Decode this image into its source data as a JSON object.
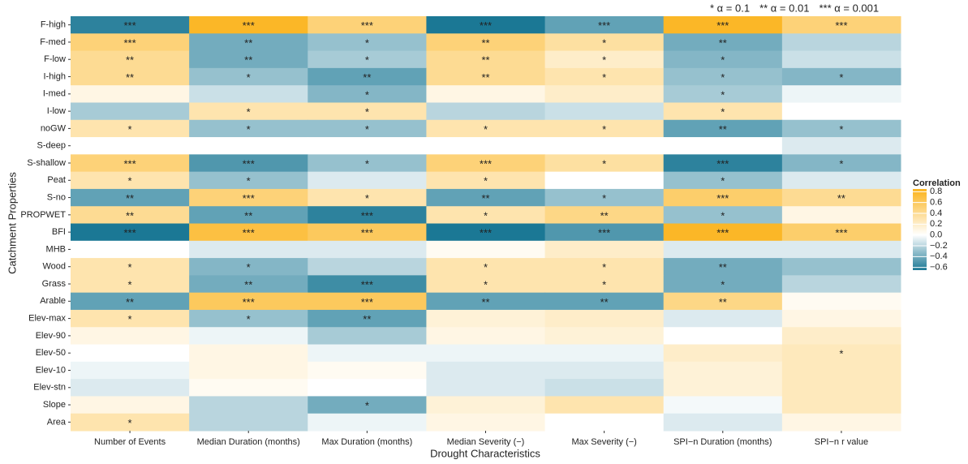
{
  "chart_data": {
    "type": "heatmap",
    "x_label": "Drought Characteristics",
    "y_label": "Catchment Properties",
    "columns": [
      "Number of Events",
      "Median Duration (months)",
      "Max Duration (months)",
      "Median Severity (−)",
      "Max Severity (−)",
      "SPI−n Duration (months)",
      "SPI−n r value"
    ],
    "rows": [
      "F-high",
      "F-med",
      "F-low",
      "I-high",
      "I-med",
      "I-low",
      "noGW",
      "S-deep",
      "S-shallow",
      "Peat",
      "S-no",
      "PROPWET",
      "BFI",
      "MHB",
      "Wood",
      "Grass",
      "Arable",
      "Elev-max",
      "Elev-90",
      "Elev-50",
      "Elev-10",
      "Elev-stn",
      "Slope",
      "Area"
    ],
    "values": [
      [
        -0.6,
        0.8,
        0.5,
        -0.65,
        -0.45,
        0.8,
        0.5
      ],
      [
        0.5,
        -0.4,
        -0.3,
        0.5,
        0.35,
        -0.4,
        -0.2
      ],
      [
        0.4,
        -0.4,
        -0.25,
        0.4,
        0.2,
        -0.35,
        -0.15
      ],
      [
        0.4,
        -0.3,
        -0.45,
        0.4,
        0.3,
        -0.3,
        -0.35
      ],
      [
        0.1,
        -0.15,
        -0.35,
        0.1,
        0.2,
        -0.25,
        -0.05
      ],
      [
        -0.25,
        0.3,
        0.3,
        -0.2,
        -0.15,
        0.3,
        0
      ],
      [
        0.3,
        -0.3,
        -0.3,
        0.3,
        0.3,
        -0.45,
        -0.3
      ],
      [
        0,
        0,
        0,
        0,
        0,
        0,
        -0.1
      ],
      [
        0.5,
        -0.5,
        -0.3,
        0.5,
        0.35,
        -0.6,
        -0.35
      ],
      [
        0.3,
        -0.3,
        -0.1,
        0.3,
        0,
        -0.3,
        -0.1
      ],
      [
        -0.45,
        0.5,
        0.3,
        -0.45,
        -0.3,
        0.55,
        0.4
      ],
      [
        0.4,
        -0.45,
        -0.6,
        0.3,
        0.45,
        -0.3,
        0.1
      ],
      [
        -0.65,
        0.7,
        0.6,
        -0.65,
        -0.5,
        0.8,
        0.55
      ],
      [
        0,
        -0.1,
        -0.1,
        0.05,
        0.2,
        -0.1,
        -0.1
      ],
      [
        0.3,
        -0.35,
        -0.2,
        0.3,
        0.3,
        -0.4,
        -0.3
      ],
      [
        0.3,
        -0.4,
        -0.55,
        0.3,
        0.3,
        -0.4,
        -0.2
      ],
      [
        -0.45,
        0.6,
        0.6,
        -0.45,
        -0.45,
        0.45,
        0.05
      ],
      [
        0.3,
        -0.3,
        -0.45,
        0.15,
        0.2,
        -0.1,
        0.1
      ],
      [
        0.1,
        -0.05,
        -0.25,
        0.1,
        0.15,
        0,
        0.2
      ],
      [
        0,
        0.1,
        -0.05,
        -0.05,
        -0.05,
        0.2,
        0.25
      ],
      [
        -0.05,
        0.1,
        0.05,
        -0.1,
        -0.1,
        0.15,
        0.25
      ],
      [
        -0.1,
        0.05,
        0,
        -0.1,
        -0.15,
        0.15,
        0.25
      ],
      [
        0.1,
        -0.2,
        -0.4,
        0.15,
        0.3,
        -0.03,
        0.25
      ],
      [
        0.3,
        -0.2,
        -0.05,
        0.1,
        0,
        -0.1,
        0.1
      ]
    ],
    "stars": [
      [
        "***",
        "***",
        "***",
        "***",
        "***",
        "***",
        "***"
      ],
      [
        "***",
        "**",
        "*",
        "**",
        "*",
        "**",
        null
      ],
      [
        "**",
        "**",
        "*",
        "**",
        "*",
        "*",
        null
      ],
      [
        "**",
        "*",
        "**",
        "**",
        "*",
        "*",
        "*"
      ],
      [
        null,
        null,
        "*",
        null,
        null,
        "*",
        null
      ],
      [
        null,
        "*",
        "*",
        null,
        null,
        "*",
        null
      ],
      [
        "*",
        "*",
        "*",
        "*",
        "*",
        "**",
        "*"
      ],
      [
        null,
        null,
        null,
        null,
        null,
        null,
        null
      ],
      [
        "***",
        "***",
        "*",
        "***",
        "*",
        "***",
        "*"
      ],
      [
        "*",
        "*",
        null,
        "*",
        null,
        "*",
        null
      ],
      [
        "**",
        "***",
        "*",
        "**",
        "*",
        "***",
        "**"
      ],
      [
        "**",
        "**",
        "***",
        "*",
        "**",
        "*",
        null
      ],
      [
        "***",
        "***",
        "***",
        "***",
        "***",
        "***",
        "***"
      ],
      [
        null,
        null,
        null,
        null,
        null,
        null,
        null
      ],
      [
        "*",
        "*",
        null,
        "*",
        "*",
        "**",
        null
      ],
      [
        "*",
        "**",
        "***",
        "*",
        "*",
        "*",
        null
      ],
      [
        "**",
        "***",
        "***",
        "**",
        "**",
        "**",
        null
      ],
      [
        "*",
        "*",
        "**",
        null,
        null,
        null,
        null
      ],
      [
        null,
        null,
        null,
        null,
        null,
        null,
        null
      ],
      [
        null,
        null,
        null,
        null,
        null,
        null,
        "*"
      ],
      [
        null,
        null,
        null,
        null,
        null,
        null,
        null
      ],
      [
        null,
        null,
        null,
        null,
        null,
        null,
        null
      ],
      [
        null,
        null,
        "*",
        null,
        null,
        null,
        null
      ],
      [
        "*",
        null,
        null,
        null,
        null,
        null,
        null
      ]
    ],
    "significance_legend": [
      "* α = 0.1",
      "** α = 0.01",
      "*** α = 0.001"
    ],
    "colorbar": {
      "title": "Correlation",
      "clim": [
        -0.65,
        0.85
      ],
      "colors": [
        "#1b7895",
        "#ffffff",
        "#fbb31a"
      ],
      "ticks": [
        0.8,
        0.6,
        0.4,
        0.2,
        {
          "value": 0,
          "label": "0.0"
        },
        {
          "value": -0.2,
          "label": "−0.2"
        },
        {
          "value": -0.4,
          "label": "−0.4"
        },
        {
          "value": -0.6,
          "label": "−0.6"
        }
      ]
    }
  }
}
